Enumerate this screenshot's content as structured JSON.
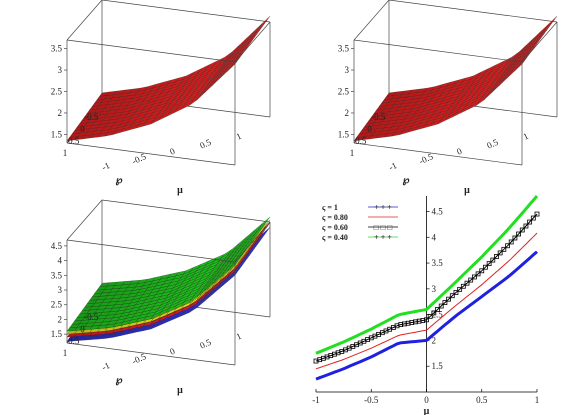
{
  "chart_data": [
    {
      "type": "surface",
      "panel": "top-left",
      "xlabel": "℘",
      "ylabel": "μ",
      "x_ticks": [
        "1",
        "0.5",
        "0",
        "-0.5"
      ],
      "y_ticks": [
        "-1",
        "-0.5",
        "0",
        "0.5",
        "1"
      ],
      "z_ticks": [
        "1.5",
        "2",
        "2.5",
        "3",
        "3.5"
      ],
      "zlim": [
        1.3,
        3.7
      ],
      "surface_color": "#f02020",
      "profile_mu": [
        -1,
        -0.5,
        0,
        0.5,
        1
      ],
      "profile_z": [
        1.35,
        1.6,
        2.0,
        2.6,
        3.65
      ]
    },
    {
      "type": "surface",
      "panel": "top-right",
      "xlabel": "℘",
      "ylabel": "μ",
      "x_ticks": [
        "1",
        "0.5",
        "0",
        "-0.5"
      ],
      "y_ticks": [
        "-1",
        "-0.5",
        "0",
        "0.5",
        "1"
      ],
      "z_ticks": [
        "1.5",
        "2",
        "2.5",
        "3",
        "3.5"
      ],
      "zlim": [
        1.3,
        3.7
      ],
      "surface_color": "#f02020",
      "profile_mu": [
        -1,
        -0.5,
        0,
        0.5,
        1
      ],
      "profile_z": [
        1.35,
        1.6,
        2.0,
        2.6,
        3.65
      ]
    },
    {
      "type": "surface",
      "panel": "bottom-left",
      "xlabel": "℘",
      "ylabel": "μ",
      "x_ticks": [
        "1",
        "0.5",
        "0",
        "-0.5"
      ],
      "y_ticks": [
        "-1",
        "-0.5",
        "0",
        "0.5",
        "1"
      ],
      "z_ticks": [
        "1.5",
        "2",
        "2.5",
        "3",
        "3.5",
        "4",
        "4.5"
      ],
      "zlim": [
        1.2,
        4.7
      ],
      "surfaces": [
        {
          "color": "#3030e0",
          "offset": -0.35
        },
        {
          "color": "#f02020",
          "offset": -0.2
        },
        {
          "color": "#f0f020",
          "offset": -0.1
        },
        {
          "color": "#20d020",
          "offset": 0.0
        }
      ],
      "profile_mu": [
        -1,
        -0.5,
        0,
        0.5,
        1
      ],
      "profile_z": [
        1.6,
        1.9,
        2.4,
        3.2,
        4.6
      ]
    },
    {
      "type": "line",
      "panel": "bottom-right",
      "xlabel": "μ",
      "ylabel": "",
      "xlim": [
        -1,
        1
      ],
      "ylim": [
        1,
        4.8
      ],
      "x_ticks": [
        "-1",
        "-0.5",
        "0",
        "0.5",
        "1"
      ],
      "y_ticks": [
        "1.5",
        "2",
        "2.5",
        "3",
        "3.5",
        "4",
        "4.5"
      ],
      "legend_position": "top-left",
      "series": [
        {
          "name": "ς = 1",
          "color": "#2020e0",
          "style": "thick-solid",
          "marker_sample": "+ + +",
          "x": [
            -1,
            -0.75,
            -0.5,
            -0.25,
            0,
            0.25,
            0.5,
            0.75,
            1
          ],
          "y": [
            1.25,
            1.45,
            1.68,
            1.95,
            2.0,
            2.45,
            2.85,
            3.25,
            3.72
          ]
        },
        {
          "name": "ς = 0.80",
          "color": "#e02020",
          "style": "thin-solid",
          "marker_sample": "",
          "x": [
            -1,
            -0.75,
            -0.5,
            -0.25,
            0,
            0.25,
            0.5,
            0.75,
            1
          ],
          "y": [
            1.45,
            1.63,
            1.85,
            2.1,
            2.2,
            2.65,
            3.08,
            3.55,
            4.08
          ]
        },
        {
          "name": "ς = 0.60",
          "color": "#000000",
          "style": "box-markers",
          "marker_sample": "□ □ □",
          "x": [
            -1,
            -0.75,
            -0.5,
            -0.25,
            0,
            0.25,
            0.5,
            0.75,
            1
          ],
          "y": [
            1.6,
            1.8,
            2.05,
            2.3,
            2.4,
            2.9,
            3.35,
            3.87,
            4.45
          ]
        },
        {
          "name": "ς = 0.40",
          "color": "#20e020",
          "style": "thick-solid",
          "marker_sample": "+ + +",
          "x": [
            -1,
            -0.75,
            -0.5,
            -0.25,
            0,
            0.25,
            0.5,
            0.75,
            1
          ],
          "y": [
            1.75,
            1.97,
            2.22,
            2.5,
            2.6,
            3.1,
            3.62,
            4.18,
            4.8
          ]
        }
      ]
    }
  ]
}
